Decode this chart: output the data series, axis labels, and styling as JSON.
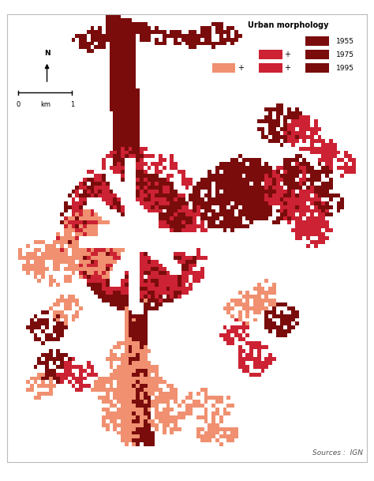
{
  "legend_title": "Urban morphology",
  "source_text": "Sources :  IGN",
  "background_color": "#FFFFFF",
  "map_border_color": "#BBBBBB",
  "year_1955_color": "#7A0C0C",
  "year_1975_color": "#CC2233",
  "year_1995_color": "#F09070",
  "fig_width": 4.74,
  "fig_height": 6.09,
  "dpi": 100,
  "grid_cols": 95,
  "grid_rows": 115
}
